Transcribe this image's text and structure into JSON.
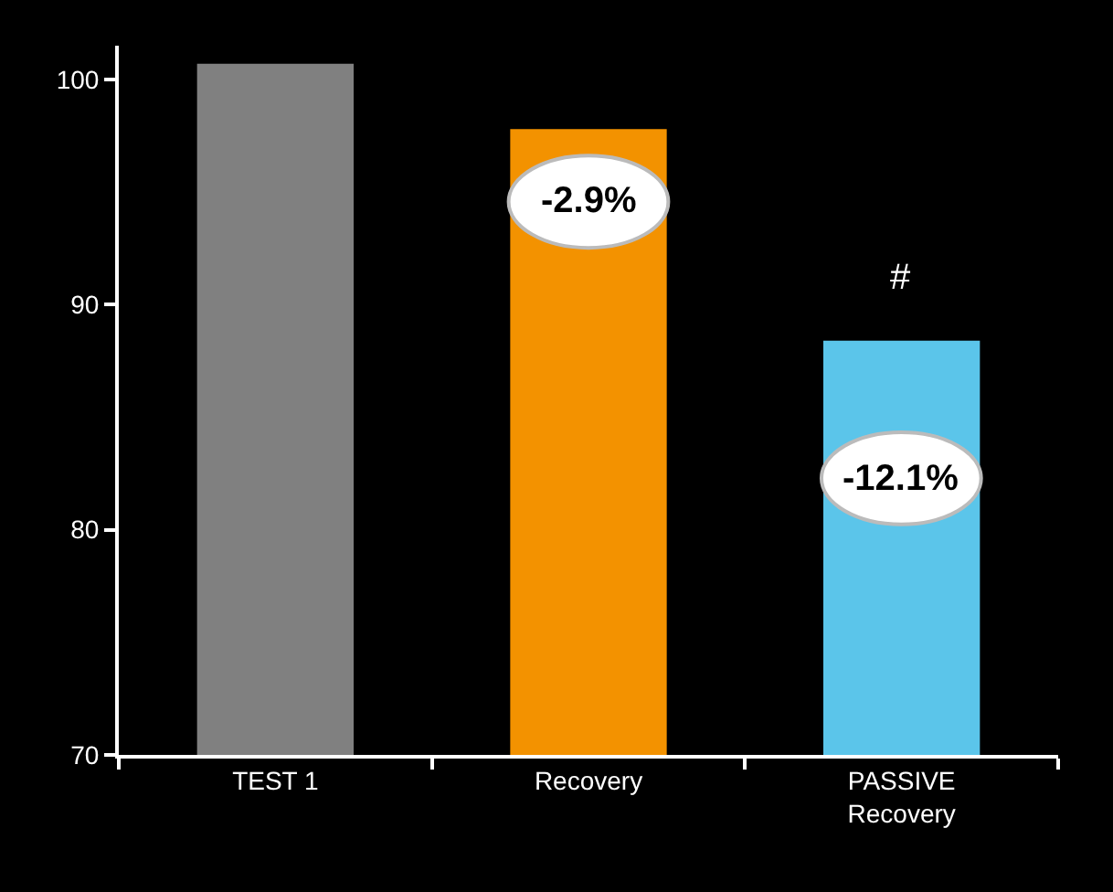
{
  "chart_data": {
    "type": "bar",
    "categories": [
      "TEST 1",
      "Recovery",
      "PASSIVE\nRecovery"
    ],
    "values": [
      100.7,
      97.8,
      88.4
    ],
    "colors": [
      "#808080",
      "#f39200",
      "#5bc5ea"
    ],
    "ylim": [
      70,
      101.5
    ],
    "yticks": [
      70,
      80,
      90,
      100
    ],
    "grid": false,
    "annotations": [
      "-2.9%",
      "-12.1%",
      "#"
    ]
  }
}
